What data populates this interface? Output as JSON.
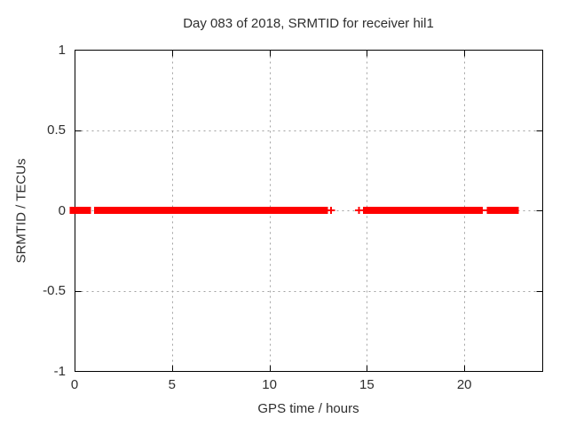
{
  "chart_data": {
    "type": "scatter",
    "title": "Day 083 of 2018, SRMTID for receiver hil1",
    "xlabel": "GPS time / hours",
    "ylabel": "SRMTID / TECUs",
    "xlim": [
      0,
      24
    ],
    "ylim": [
      -1,
      1
    ],
    "grid": true,
    "legend": "none",
    "xticks": [
      {
        "value": 0,
        "label": "0"
      },
      {
        "value": 5,
        "label": "5"
      },
      {
        "value": 10,
        "label": "10"
      },
      {
        "value": 15,
        "label": "15"
      },
      {
        "value": 20,
        "label": "20"
      }
    ],
    "yticks": [
      {
        "value": 1,
        "label": "1"
      },
      {
        "value": 0.5,
        "label": "0.5"
      },
      {
        "value": 0,
        "label": "0"
      },
      {
        "value": -0.5,
        "label": "-0.5"
      },
      {
        "value": -1,
        "label": "-1"
      }
    ],
    "series": [
      {
        "name": "SRMTID",
        "marker": "plus",
        "color": "#ff0000",
        "y_value": 0,
        "dense_runs_hours": [
          [
            -0.25,
            0.85
          ],
          [
            1.0,
            13.0
          ],
          [
            14.8,
            20.95
          ],
          [
            21.15,
            22.8
          ]
        ],
        "isolated_points_hours": [
          13.15,
          14.6
        ],
        "thin_runs_hours": [
          [
            20.95,
            21.15
          ]
        ]
      }
    ]
  },
  "colors": {
    "background": "#ffffff",
    "border": "#000000",
    "grid": "#a0a0a0",
    "text": "#2e2e2e"
  }
}
